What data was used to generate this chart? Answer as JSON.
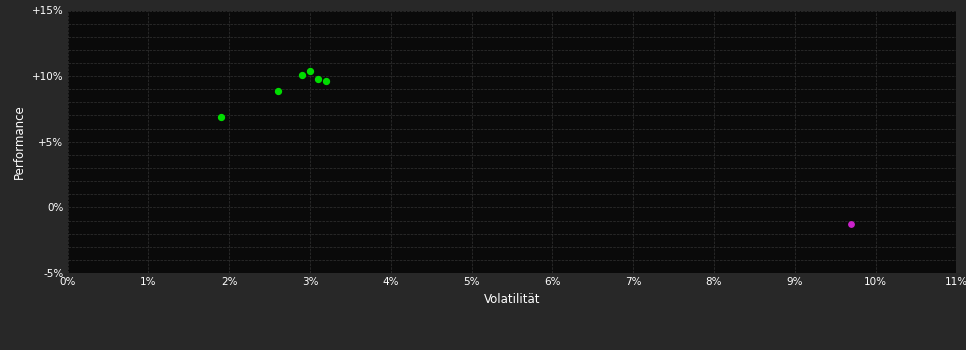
{
  "background_color": "#282828",
  "plot_bg_color": "#0a0a0a",
  "grid_color": "#333333",
  "text_color": "#ffffff",
  "xlabel": "Volatilität",
  "ylabel": "Performance",
  "xlim": [
    0,
    0.11
  ],
  "ylim": [
    -0.05,
    0.15
  ],
  "xticks": [
    0.0,
    0.01,
    0.02,
    0.03,
    0.04,
    0.05,
    0.06,
    0.07,
    0.08,
    0.09,
    0.1,
    0.11
  ],
  "yticks": [
    -0.05,
    0.0,
    0.05,
    0.1,
    0.15
  ],
  "ytick_labels": [
    "-5%",
    "0%",
    "+5%",
    "+10%",
    "+15%"
  ],
  "xtick_labels": [
    "0%",
    "1%",
    "2%",
    "3%",
    "4%",
    "5%",
    "6%",
    "7%",
    "8%",
    "9%",
    "10%",
    "11%"
  ],
  "green_points": [
    [
      0.019,
      0.069
    ],
    [
      0.026,
      0.089
    ],
    [
      0.029,
      0.101
    ],
    [
      0.03,
      0.104
    ],
    [
      0.031,
      0.098
    ],
    [
      0.032,
      0.096
    ]
  ],
  "magenta_points": [
    [
      0.097,
      -0.013
    ]
  ],
  "green_color": "#00dd00",
  "magenta_color": "#cc22cc",
  "point_size": 18,
  "magenta_size": 15,
  "minor_yticks": [
    -0.05,
    -0.04,
    -0.03,
    -0.02,
    -0.01,
    0.0,
    0.01,
    0.02,
    0.03,
    0.04,
    0.05,
    0.06,
    0.07,
    0.08,
    0.09,
    0.1,
    0.11,
    0.12,
    0.13,
    0.14,
    0.15
  ]
}
